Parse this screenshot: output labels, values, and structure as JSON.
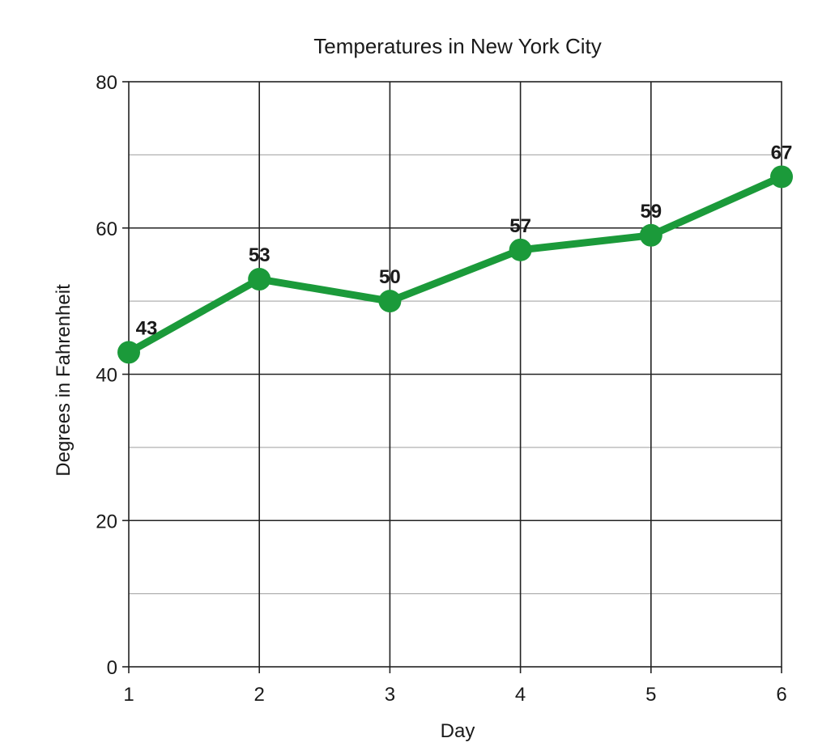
{
  "chart_data": {
    "type": "line",
    "title": "Temperatures in New York City",
    "xlabel": "Day",
    "ylabel": "Degrees in Fahrenheit",
    "x": [
      1,
      2,
      3,
      4,
      5,
      6
    ],
    "x_ticks": [
      "1",
      "2",
      "3",
      "4",
      "5",
      "6"
    ],
    "y_ticks": [
      "0",
      "20",
      "40",
      "60",
      "80"
    ],
    "ylim": [
      0,
      80
    ],
    "xlim": [
      1,
      6
    ],
    "y_major_step": 20,
    "y_minor_step": 10,
    "grid": true,
    "series": [
      {
        "values": [
          43,
          53,
          50,
          57,
          59,
          67
        ],
        "labels": [
          "43",
          "53",
          "50",
          "57",
          "59",
          "67"
        ],
        "color": "#1b9a3a"
      }
    ]
  }
}
